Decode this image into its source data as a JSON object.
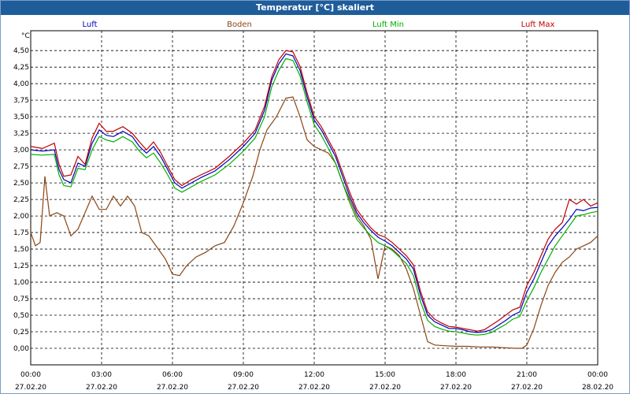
{
  "chart_data": {
    "type": "line",
    "title": "Temperatur [°C] skaliert",
    "ylabel": "°C",
    "ylim": [
      -0.25,
      4.8
    ],
    "yticks": [
      "4,50",
      "4,25",
      "4,00",
      "3,75",
      "3,50",
      "3,25",
      "3,00",
      "2,75",
      "2,50",
      "2,25",
      "2,00",
      "1,75",
      "1,50",
      "1,25",
      "1,00",
      "0,75",
      "0,50",
      "0,25",
      "0,00"
    ],
    "ytick_values": [
      4.5,
      4.25,
      4.0,
      3.75,
      3.5,
      3.25,
      3.0,
      2.75,
      2.5,
      2.25,
      2.0,
      1.75,
      1.5,
      1.25,
      1.0,
      0.75,
      0.5,
      0.25,
      0.0
    ],
    "xticks": [
      {
        "time": "00:00",
        "date": "27.02.20",
        "h": 0
      },
      {
        "time": "03:00",
        "date": "27.02.20",
        "h": 3
      },
      {
        "time": "06:00",
        "date": "27.02.20",
        "h": 6
      },
      {
        "time": "09:00",
        "date": "27.02.20",
        "h": 9
      },
      {
        "time": "12:00",
        "date": "27.02.20",
        "h": 12
      },
      {
        "time": "15:00",
        "date": "27.02.20",
        "h": 15
      },
      {
        "time": "18:00",
        "date": "27.02.20",
        "h": 18
      },
      {
        "time": "21:00",
        "date": "27.02.20",
        "h": 21
      },
      {
        "time": "00:00",
        "date": "28.02.20",
        "h": 24
      }
    ],
    "grid": true,
    "legend_position": "top",
    "series": [
      {
        "name": "Luft",
        "color": "#0000c0",
        "points": [
          [
            0,
            3.0
          ],
          [
            0.5,
            2.98
          ],
          [
            1,
            3.0
          ],
          [
            1.2,
            2.7
          ],
          [
            1.4,
            2.55
          ],
          [
            1.7,
            2.5
          ],
          [
            2,
            2.8
          ],
          [
            2.3,
            2.75
          ],
          [
            2.6,
            3.1
          ],
          [
            2.9,
            3.3
          ],
          [
            3.2,
            3.22
          ],
          [
            3.5,
            3.2
          ],
          [
            3.9,
            3.28
          ],
          [
            4.3,
            3.2
          ],
          [
            4.6,
            3.05
          ],
          [
            4.9,
            2.95
          ],
          [
            5.2,
            3.05
          ],
          [
            5.5,
            2.9
          ],
          [
            5.8,
            2.7
          ],
          [
            6.1,
            2.5
          ],
          [
            6.4,
            2.42
          ],
          [
            6.8,
            2.5
          ],
          [
            7.2,
            2.58
          ],
          [
            7.8,
            2.68
          ],
          [
            8.4,
            2.85
          ],
          [
            9,
            3.05
          ],
          [
            9.5,
            3.25
          ],
          [
            9.9,
            3.6
          ],
          [
            10.2,
            4.05
          ],
          [
            10.5,
            4.3
          ],
          [
            10.8,
            4.45
          ],
          [
            11.1,
            4.42
          ],
          [
            11.4,
            4.2
          ],
          [
            11.7,
            3.8
          ],
          [
            12,
            3.45
          ],
          [
            12.3,
            3.3
          ],
          [
            12.6,
            3.1
          ],
          [
            12.9,
            2.9
          ],
          [
            13.2,
            2.6
          ],
          [
            13.5,
            2.3
          ],
          [
            13.8,
            2.05
          ],
          [
            14.1,
            1.9
          ],
          [
            14.4,
            1.78
          ],
          [
            14.7,
            1.68
          ],
          [
            15,
            1.62
          ],
          [
            15.3,
            1.55
          ],
          [
            15.6,
            1.45
          ],
          [
            15.9,
            1.35
          ],
          [
            16.2,
            1.2
          ],
          [
            16.5,
            0.8
          ],
          [
            16.8,
            0.5
          ],
          [
            17.1,
            0.4
          ],
          [
            17.4,
            0.35
          ],
          [
            17.7,
            0.3
          ],
          [
            18,
            0.3
          ],
          [
            18.3,
            0.28
          ],
          [
            18.6,
            0.25
          ],
          [
            18.9,
            0.24
          ],
          [
            19.2,
            0.25
          ],
          [
            19.5,
            0.28
          ],
          [
            19.8,
            0.35
          ],
          [
            20.1,
            0.42
          ],
          [
            20.4,
            0.5
          ],
          [
            20.7,
            0.55
          ],
          [
            21,
            0.85
          ],
          [
            21.3,
            1.05
          ],
          [
            21.6,
            1.3
          ],
          [
            21.9,
            1.55
          ],
          [
            22.2,
            1.7
          ],
          [
            22.5,
            1.82
          ],
          [
            22.8,
            1.95
          ],
          [
            23.1,
            2.1
          ],
          [
            23.4,
            2.08
          ],
          [
            23.7,
            2.12
          ],
          [
            24,
            2.13
          ]
        ]
      },
      {
        "name": "Boden",
        "color": "#8b4513",
        "points": [
          [
            0,
            1.75
          ],
          [
            0.2,
            1.55
          ],
          [
            0.4,
            1.6
          ],
          [
            0.6,
            2.6
          ],
          [
            0.8,
            2.0
          ],
          [
            1.1,
            2.05
          ],
          [
            1.4,
            2.0
          ],
          [
            1.7,
            1.7
          ],
          [
            2,
            1.8
          ],
          [
            2.3,
            2.05
          ],
          [
            2.6,
            2.3
          ],
          [
            2.9,
            2.1
          ],
          [
            3.2,
            2.1
          ],
          [
            3.5,
            2.3
          ],
          [
            3.8,
            2.15
          ],
          [
            4.1,
            2.3
          ],
          [
            4.4,
            2.15
          ],
          [
            4.7,
            1.75
          ],
          [
            5,
            1.7
          ],
          [
            5.3,
            1.55
          ],
          [
            5.7,
            1.35
          ],
          [
            6,
            1.12
          ],
          [
            6.3,
            1.1
          ],
          [
            6.6,
            1.25
          ],
          [
            7,
            1.38
          ],
          [
            7.4,
            1.45
          ],
          [
            7.8,
            1.55
          ],
          [
            8.2,
            1.6
          ],
          [
            8.6,
            1.85
          ],
          [
            9,
            2.2
          ],
          [
            9.4,
            2.6
          ],
          [
            9.7,
            3.0
          ],
          [
            10,
            3.3
          ],
          [
            10.4,
            3.5
          ],
          [
            10.8,
            3.78
          ],
          [
            11.1,
            3.8
          ],
          [
            11.4,
            3.5
          ],
          [
            11.7,
            3.15
          ],
          [
            12,
            3.05
          ],
          [
            12.3,
            3.0
          ],
          [
            12.6,
            2.95
          ],
          [
            12.9,
            2.8
          ],
          [
            13.2,
            2.5
          ],
          [
            13.5,
            2.25
          ],
          [
            13.8,
            2.0
          ],
          [
            14.1,
            1.85
          ],
          [
            14.4,
            1.65
          ],
          [
            14.7,
            1.05
          ],
          [
            15,
            1.55
          ],
          [
            15.3,
            1.5
          ],
          [
            15.6,
            1.4
          ],
          [
            15.9,
            1.2
          ],
          [
            16.2,
            0.9
          ],
          [
            16.5,
            0.5
          ],
          [
            16.8,
            0.1
          ],
          [
            17.1,
            0.05
          ],
          [
            17.5,
            0.04
          ],
          [
            18,
            0.03
          ],
          [
            18.5,
            0.03
          ],
          [
            19,
            0.02
          ],
          [
            19.5,
            0.02
          ],
          [
            20,
            0.01
          ],
          [
            20.5,
            0.0
          ],
          [
            20.8,
            0.0
          ],
          [
            21,
            0.05
          ],
          [
            21.3,
            0.3
          ],
          [
            21.6,
            0.65
          ],
          [
            21.9,
            0.95
          ],
          [
            22.2,
            1.15
          ],
          [
            22.5,
            1.3
          ],
          [
            22.8,
            1.38
          ],
          [
            23.1,
            1.5
          ],
          [
            23.4,
            1.55
          ],
          [
            23.7,
            1.6
          ],
          [
            24,
            1.7
          ]
        ]
      },
      {
        "name": "Luft Min",
        "color": "#00b000",
        "points": [
          [
            0,
            2.93
          ],
          [
            0.5,
            2.92
          ],
          [
            1,
            2.93
          ],
          [
            1.2,
            2.62
          ],
          [
            1.4,
            2.46
          ],
          [
            1.7,
            2.44
          ],
          [
            2,
            2.72
          ],
          [
            2.3,
            2.7
          ],
          [
            2.6,
            3.0
          ],
          [
            2.9,
            3.2
          ],
          [
            3.2,
            3.15
          ],
          [
            3.5,
            3.12
          ],
          [
            3.9,
            3.2
          ],
          [
            4.3,
            3.12
          ],
          [
            4.6,
            2.98
          ],
          [
            4.9,
            2.88
          ],
          [
            5.2,
            2.95
          ],
          [
            5.5,
            2.8
          ],
          [
            5.8,
            2.62
          ],
          [
            6.1,
            2.42
          ],
          [
            6.4,
            2.36
          ],
          [
            6.8,
            2.44
          ],
          [
            7.2,
            2.52
          ],
          [
            7.8,
            2.62
          ],
          [
            8.4,
            2.78
          ],
          [
            9,
            2.98
          ],
          [
            9.5,
            3.18
          ],
          [
            9.9,
            3.5
          ],
          [
            10.2,
            3.95
          ],
          [
            10.5,
            4.2
          ],
          [
            10.8,
            4.38
          ],
          [
            11.1,
            4.35
          ],
          [
            11.4,
            4.12
          ],
          [
            11.7,
            3.72
          ],
          [
            12,
            3.38
          ],
          [
            12.3,
            3.22
          ],
          [
            12.6,
            3.02
          ],
          [
            12.9,
            2.8
          ],
          [
            13.2,
            2.5
          ],
          [
            13.5,
            2.2
          ],
          [
            13.8,
            1.95
          ],
          [
            14.1,
            1.82
          ],
          [
            14.4,
            1.7
          ],
          [
            14.7,
            1.6
          ],
          [
            15,
            1.55
          ],
          [
            15.3,
            1.48
          ],
          [
            15.6,
            1.38
          ],
          [
            15.9,
            1.28
          ],
          [
            16.2,
            1.1
          ],
          [
            16.5,
            0.7
          ],
          [
            16.8,
            0.42
          ],
          [
            17.1,
            0.33
          ],
          [
            17.4,
            0.29
          ],
          [
            17.7,
            0.26
          ],
          [
            18,
            0.25
          ],
          [
            18.3,
            0.23
          ],
          [
            18.6,
            0.21
          ],
          [
            18.9,
            0.2
          ],
          [
            19.2,
            0.21
          ],
          [
            19.5,
            0.24
          ],
          [
            19.8,
            0.3
          ],
          [
            20.1,
            0.36
          ],
          [
            20.4,
            0.44
          ],
          [
            20.7,
            0.48
          ],
          [
            21,
            0.72
          ],
          [
            21.3,
            0.92
          ],
          [
            21.6,
            1.15
          ],
          [
            21.9,
            1.35
          ],
          [
            22.2,
            1.55
          ],
          [
            22.5,
            1.7
          ],
          [
            22.8,
            1.85
          ],
          [
            23.1,
            2.0
          ],
          [
            23.4,
            2.02
          ],
          [
            23.7,
            2.05
          ],
          [
            24,
            2.07
          ]
        ]
      },
      {
        "name": "Luft Max",
        "color": "#c00000",
        "points": [
          [
            0,
            3.05
          ],
          [
            0.5,
            3.02
          ],
          [
            1,
            3.1
          ],
          [
            1.2,
            2.78
          ],
          [
            1.4,
            2.6
          ],
          [
            1.7,
            2.62
          ],
          [
            2,
            2.9
          ],
          [
            2.3,
            2.78
          ],
          [
            2.6,
            3.18
          ],
          [
            2.9,
            3.4
          ],
          [
            3.2,
            3.28
          ],
          [
            3.5,
            3.28
          ],
          [
            3.9,
            3.35
          ],
          [
            4.3,
            3.25
          ],
          [
            4.6,
            3.12
          ],
          [
            4.9,
            3.0
          ],
          [
            5.2,
            3.12
          ],
          [
            5.5,
            2.96
          ],
          [
            5.8,
            2.75
          ],
          [
            6.1,
            2.55
          ],
          [
            6.4,
            2.46
          ],
          [
            6.8,
            2.55
          ],
          [
            7.2,
            2.62
          ],
          [
            7.8,
            2.72
          ],
          [
            8.4,
            2.9
          ],
          [
            9,
            3.1
          ],
          [
            9.5,
            3.3
          ],
          [
            9.9,
            3.66
          ],
          [
            10.2,
            4.1
          ],
          [
            10.5,
            4.36
          ],
          [
            10.8,
            4.5
          ],
          [
            11.1,
            4.48
          ],
          [
            11.4,
            4.26
          ],
          [
            11.7,
            3.86
          ],
          [
            12,
            3.5
          ],
          [
            12.3,
            3.35
          ],
          [
            12.6,
            3.15
          ],
          [
            12.9,
            2.95
          ],
          [
            13.2,
            2.66
          ],
          [
            13.5,
            2.36
          ],
          [
            13.8,
            2.1
          ],
          [
            14.1,
            1.95
          ],
          [
            14.4,
            1.82
          ],
          [
            14.7,
            1.72
          ],
          [
            15,
            1.68
          ],
          [
            15.3,
            1.6
          ],
          [
            15.6,
            1.5
          ],
          [
            15.9,
            1.4
          ],
          [
            16.2,
            1.26
          ],
          [
            16.5,
            0.86
          ],
          [
            16.8,
            0.55
          ],
          [
            17.1,
            0.44
          ],
          [
            17.4,
            0.38
          ],
          [
            17.7,
            0.33
          ],
          [
            18,
            0.32
          ],
          [
            18.3,
            0.3
          ],
          [
            18.6,
            0.28
          ],
          [
            18.9,
            0.26
          ],
          [
            19.2,
            0.28
          ],
          [
            19.5,
            0.35
          ],
          [
            19.8,
            0.42
          ],
          [
            20.1,
            0.5
          ],
          [
            20.4,
            0.58
          ],
          [
            20.7,
            0.62
          ],
          [
            21,
            0.95
          ],
          [
            21.3,
            1.15
          ],
          [
            21.6,
            1.4
          ],
          [
            21.9,
            1.65
          ],
          [
            22.2,
            1.8
          ],
          [
            22.5,
            1.9
          ],
          [
            22.8,
            2.25
          ],
          [
            23.1,
            2.18
          ],
          [
            23.4,
            2.25
          ],
          [
            23.7,
            2.15
          ],
          [
            24,
            2.2
          ]
        ]
      }
    ]
  }
}
